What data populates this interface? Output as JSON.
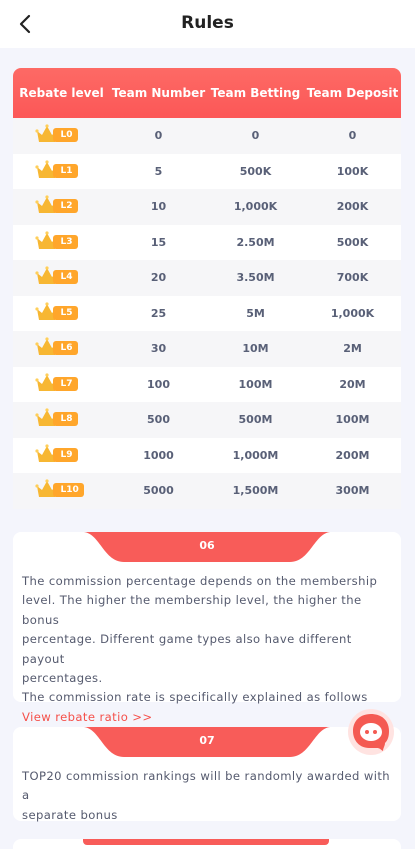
{
  "header": {
    "title": "Rules"
  },
  "table": {
    "headers": [
      "Rebate level",
      "Team Number",
      "Team Betting",
      "Team Deposit"
    ],
    "rows": [
      {
        "level": "L0",
        "team_number": "0",
        "team_betting": "0",
        "team_deposit": "0"
      },
      {
        "level": "L1",
        "team_number": "5",
        "team_betting": "500K",
        "team_deposit": "100K"
      },
      {
        "level": "L2",
        "team_number": "10",
        "team_betting": "1,000K",
        "team_deposit": "200K"
      },
      {
        "level": "L3",
        "team_number": "15",
        "team_betting": "2.50M",
        "team_deposit": "500K"
      },
      {
        "level": "L4",
        "team_number": "20",
        "team_betting": "3.50M",
        "team_deposit": "700K"
      },
      {
        "level": "L5",
        "team_number": "25",
        "team_betting": "5M",
        "team_deposit": "1,000K"
      },
      {
        "level": "L6",
        "team_number": "30",
        "team_betting": "10M",
        "team_deposit": "2M"
      },
      {
        "level": "L7",
        "team_number": "100",
        "team_betting": "100M",
        "team_deposit": "20M"
      },
      {
        "level": "L8",
        "team_number": "500",
        "team_betting": "500M",
        "team_deposit": "100M"
      },
      {
        "level": "L9",
        "team_number": "1000",
        "team_betting": "1,000M",
        "team_deposit": "200M"
      },
      {
        "level": "L10",
        "team_number": "5000",
        "team_betting": "1,500M",
        "team_deposit": "300M"
      }
    ]
  },
  "rule_06": {
    "number": "06",
    "lines": [
      "The commission percentage depends on the membership",
      "level. The higher the membership level, the higher the bonus",
      "percentage. Different game types also have different payout",
      "percentages.",
      "The commission rate is specifically explained as follows"
    ],
    "link": "View rebate ratio >>"
  },
  "rule_07": {
    "number": "07",
    "lines": [
      "TOP20 commission rankings will be randomly awarded with a",
      "separate bonus"
    ]
  },
  "colors": {
    "accent": "#f85c59",
    "badge": "#ffa62b",
    "crown": "#f7b733"
  },
  "icons": {
    "back": "chevron-left-icon",
    "crown": "crown-icon",
    "chat": "chat-bot-icon"
  }
}
